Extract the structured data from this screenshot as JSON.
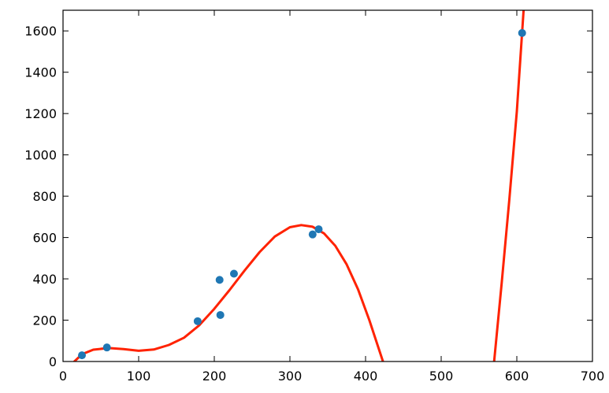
{
  "chart_data": {
    "type": "scatter",
    "xlim": [
      0,
      700
    ],
    "ylim": [
      0,
      1700
    ],
    "x_ticks": [
      0,
      100,
      200,
      300,
      400,
      500,
      600,
      700
    ],
    "y_ticks": [
      0,
      200,
      400,
      600,
      800,
      1000,
      1200,
      1400,
      1600
    ],
    "x_tick_labels": [
      "0",
      "100",
      "200",
      "300",
      "400",
      "500",
      "600",
      "700"
    ],
    "y_tick_labels": [
      "0",
      "200",
      "400",
      "600",
      "800",
      "1000",
      "1200",
      "1400",
      "1600"
    ],
    "grid": false,
    "series": [
      {
        "kind": "scatter",
        "color": "#1f77b4",
        "points": [
          {
            "x": 25,
            "y": 30
          },
          {
            "x": 58,
            "y": 68
          },
          {
            "x": 178,
            "y": 195
          },
          {
            "x": 207,
            "y": 395
          },
          {
            "x": 208,
            "y": 225
          },
          {
            "x": 226,
            "y": 425
          },
          {
            "x": 330,
            "y": 615
          },
          {
            "x": 338,
            "y": 640
          },
          {
            "x": 607,
            "y": 1590
          }
        ]
      },
      {
        "kind": "line",
        "color": "#ff2200",
        "points": [
          {
            "x": 15,
            "y": 0
          },
          {
            "x": 25,
            "y": 35
          },
          {
            "x": 40,
            "y": 57
          },
          {
            "x": 60,
            "y": 65
          },
          {
            "x": 80,
            "y": 60
          },
          {
            "x": 100,
            "y": 52
          },
          {
            "x": 120,
            "y": 58
          },
          {
            "x": 140,
            "y": 80
          },
          {
            "x": 160,
            "y": 115
          },
          {
            "x": 180,
            "y": 175
          },
          {
            "x": 200,
            "y": 255
          },
          {
            "x": 220,
            "y": 345
          },
          {
            "x": 240,
            "y": 440
          },
          {
            "x": 260,
            "y": 530
          },
          {
            "x": 280,
            "y": 605
          },
          {
            "x": 300,
            "y": 650
          },
          {
            "x": 315,
            "y": 660
          },
          {
            "x": 330,
            "y": 652
          },
          {
            "x": 345,
            "y": 620
          },
          {
            "x": 360,
            "y": 560
          },
          {
            "x": 375,
            "y": 470
          },
          {
            "x": 390,
            "y": 350
          },
          {
            "x": 405,
            "y": 200
          },
          {
            "x": 423,
            "y": 0
          }
        ]
      },
      {
        "kind": "line",
        "color": "#ff2200",
        "points": [
          {
            "x": 570,
            "y": 0
          },
          {
            "x": 580,
            "y": 380
          },
          {
            "x": 590,
            "y": 780
          },
          {
            "x": 600,
            "y": 1210
          },
          {
            "x": 609,
            "y": 1700
          }
        ]
      }
    ]
  }
}
